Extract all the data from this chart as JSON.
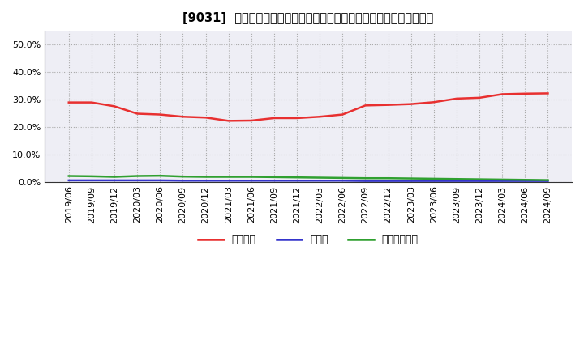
{
  "title": "[9031]  自己資本、のれん、繰延税金資産の総資産に対する比率の推移",
  "x_labels": [
    "2019/06",
    "2019/09",
    "2019/12",
    "2020/03",
    "2020/06",
    "2020/09",
    "2020/12",
    "2021/03",
    "2021/06",
    "2021/09",
    "2021/12",
    "2022/03",
    "2022/06",
    "2022/09",
    "2022/12",
    "2023/03",
    "2023/06",
    "2023/09",
    "2023/12",
    "2024/03",
    "2024/06",
    "2024/09"
  ],
  "equity": [
    0.289,
    0.289,
    0.275,
    0.248,
    0.245,
    0.237,
    0.234,
    0.222,
    0.223,
    0.232,
    0.232,
    0.237,
    0.245,
    0.278,
    0.28,
    0.283,
    0.29,
    0.303,
    0.306,
    0.319,
    0.321,
    0.322
  ],
  "noren": [
    0.005,
    0.005,
    0.005,
    0.005,
    0.005,
    0.004,
    0.004,
    0.004,
    0.004,
    0.004,
    0.004,
    0.004,
    0.004,
    0.003,
    0.003,
    0.003,
    0.003,
    0.003,
    0.003,
    0.003,
    0.003,
    0.003
  ],
  "deferred_tax": [
    0.021,
    0.02,
    0.018,
    0.021,
    0.022,
    0.019,
    0.018,
    0.018,
    0.018,
    0.017,
    0.016,
    0.015,
    0.014,
    0.013,
    0.013,
    0.012,
    0.011,
    0.01,
    0.009,
    0.008,
    0.007,
    0.006
  ],
  "equity_color": "#e83030",
  "noren_color": "#3535cc",
  "deferred_tax_color": "#30a030",
  "background_color": "#ffffff",
  "plot_bg_color": "#eeeef5",
  "ylim": [
    0.0,
    0.55
  ],
  "yticks": [
    0.0,
    0.1,
    0.2,
    0.3,
    0.4,
    0.5
  ],
  "legend_labels": [
    "自己資本",
    "のれん",
    "繰延税金資産"
  ],
  "line_width": 1.8,
  "title_prefix": "[9031]  "
}
